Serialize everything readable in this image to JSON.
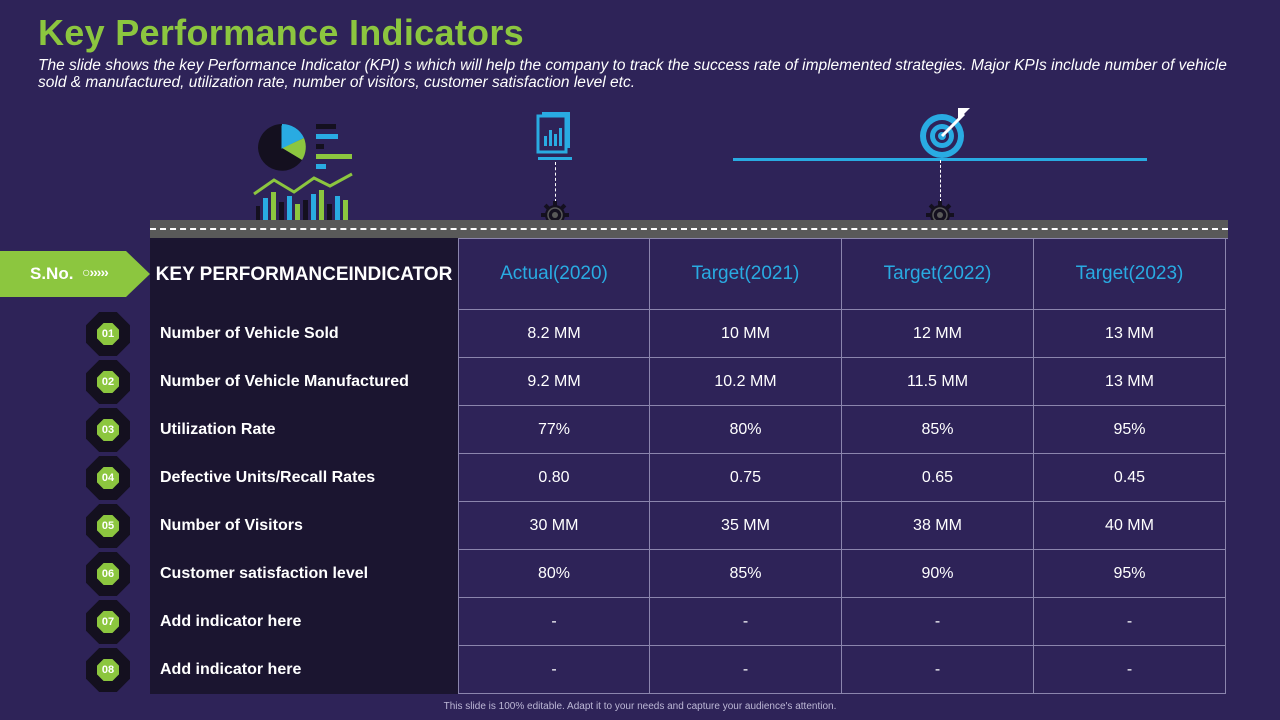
{
  "title": "Key Performance Indicators",
  "subtitle": "The slide shows the key Performance Indicator (KPI) s which will help the company to track the success rate of implemented strategies. Major KPIs include number of vehicle sold & manufactured, utilization rate, number of visitors, customer satisfaction level etc.",
  "sno_label": "S.No.",
  "sno_decoration": "○›››››",
  "icons": [
    "chart-dashboard-icon",
    "report-document-icon",
    "target-icon",
    "gear-icon"
  ],
  "table": {
    "kpi_header": "KEY PERFORMANCE INDICATOR",
    "columns": [
      "Actual (2020)",
      "Target (2021)",
      "Target (2022)",
      "Target (2023)"
    ],
    "rows": [
      {
        "no": "01",
        "kpi": "Number of Vehicle Sold",
        "values": [
          "8.2 MM",
          "10 MM",
          "12 MM",
          "13 MM"
        ]
      },
      {
        "no": "02",
        "kpi": "Number of Vehicle Manufactured",
        "values": [
          "9.2 MM",
          "10.2 MM",
          "11.5 MM",
          "13 MM"
        ]
      },
      {
        "no": "03",
        "kpi": "Utilization Rate",
        "values": [
          "77%",
          "80%",
          "85%",
          "95%"
        ]
      },
      {
        "no": "04",
        "kpi": "Defective Units/Recall Rates",
        "values": [
          "0.80",
          "0.75",
          "0.65",
          "0.45"
        ]
      },
      {
        "no": "05",
        "kpi": "Number of Visitors",
        "values": [
          "30 MM",
          "35 MM",
          "38 MM",
          "40 MM"
        ]
      },
      {
        "no": "06",
        "kpi": "Customer satisfaction level",
        "values": [
          "80%",
          "85%",
          "90%",
          "95%"
        ]
      },
      {
        "no": "07",
        "kpi": "Add indicator here",
        "values": [
          "-",
          "-",
          "-",
          "-"
        ]
      },
      {
        "no": "08",
        "kpi": "Add indicator here",
        "values": [
          "-",
          "-",
          "-",
          "-"
        ]
      }
    ]
  },
  "footer": "This slide is 100% editable. Adapt it to your needs and capture your audience's attention.",
  "colors": {
    "background": "#2e2358",
    "accent_green": "#8cc63f",
    "accent_blue": "#29abe2",
    "kpi_column": "#1b1530"
  }
}
